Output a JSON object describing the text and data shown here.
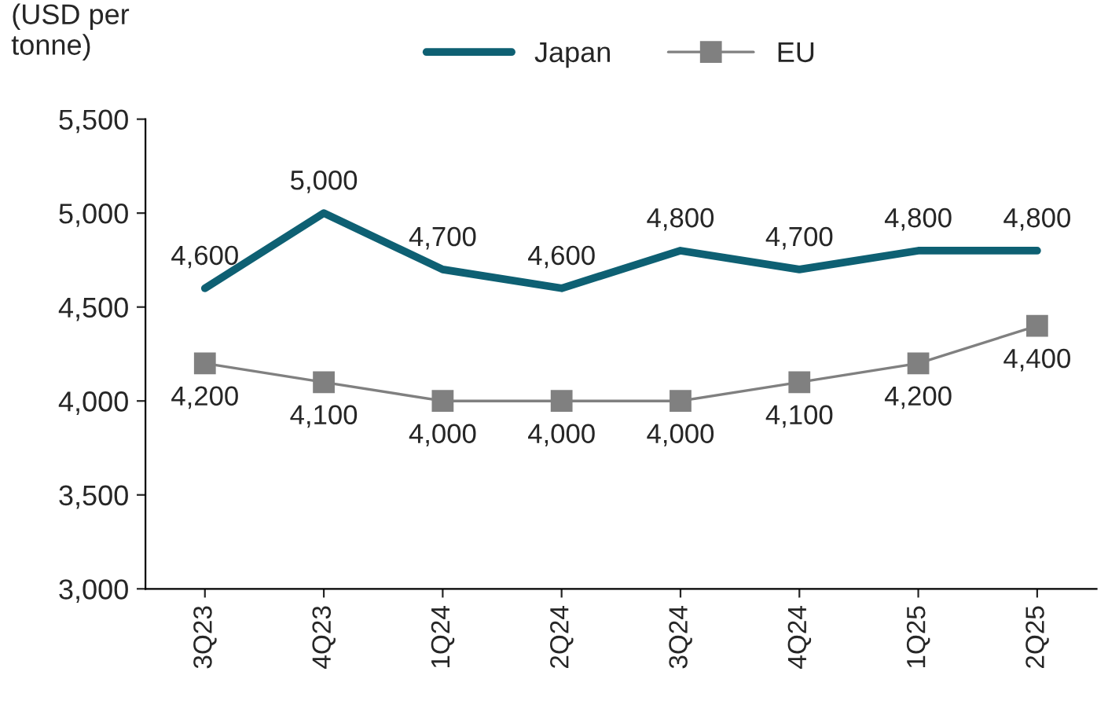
{
  "chart_data": {
    "type": "line",
    "ylabel": "(USD per\ntonne)",
    "categories": [
      "3Q23",
      "4Q23",
      "1Q24",
      "2Q24",
      "3Q24",
      "4Q24",
      "1Q25",
      "2Q25"
    ],
    "series": [
      {
        "name": "Japan",
        "color": "#0e6073",
        "marker": "none",
        "values": [
          4600,
          5000,
          4700,
          4600,
          4800,
          4700,
          4800,
          4800
        ],
        "value_labels": [
          "4,600",
          "5,000",
          "4,700",
          "4,600",
          "4,800",
          "4,700",
          "4,800",
          "4,800"
        ]
      },
      {
        "name": "EU",
        "color": "#808080",
        "marker": "square",
        "values": [
          4200,
          4100,
          4000,
          4000,
          4000,
          4100,
          4200,
          4400
        ],
        "value_labels": [
          "4,200",
          "4,100",
          "4,000",
          "4,000",
          "4,000",
          "4,100",
          "4,200",
          "4,400"
        ]
      }
    ],
    "ylim": [
      3000,
      5500
    ],
    "yticks": [
      {
        "value": 3000,
        "label": "3,000"
      },
      {
        "value": 3500,
        "label": "3,500"
      },
      {
        "value": 4000,
        "label": "4,000"
      },
      {
        "value": 4500,
        "label": "4,500"
      },
      {
        "value": 5000,
        "label": "5,000"
      },
      {
        "value": 5500,
        "label": "5,500"
      }
    ],
    "grid": false,
    "legend": "top"
  }
}
